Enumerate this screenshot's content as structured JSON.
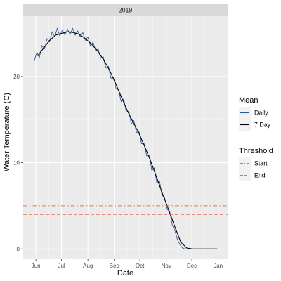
{
  "chart_data": {
    "type": "line",
    "facet": "2019",
    "xlabel": "Date",
    "ylabel": "Water Temperature (C)",
    "x_ticks": [
      "Jun",
      "Jul",
      "Aug",
      "Sep",
      "Oct",
      "Nov",
      "Dec",
      "Jan"
    ],
    "x_tick_dates": [
      "2019-06-01",
      "2019-07-01",
      "2019-08-01",
      "2019-09-01",
      "2019-10-01",
      "2019-11-01",
      "2019-12-01",
      "2020-01-01"
    ],
    "xlim": [
      "2019-05-17",
      "2020-01-12"
    ],
    "y_ticks": [
      0,
      10,
      20
    ],
    "ylim": [
      -1.2,
      27
    ],
    "grid": true,
    "legend_position": "right",
    "series": [
      {
        "name": "Daily",
        "color": "#2e5a9c",
        "points": [
          [
            "2019-05-30",
            21.8
          ],
          [
            "2019-06-02",
            22.8
          ],
          [
            "2019-06-05",
            22.2
          ],
          [
            "2019-06-08",
            23.6
          ],
          [
            "2019-06-11",
            23.2
          ],
          [
            "2019-06-14",
            24.4
          ],
          [
            "2019-06-17",
            24.0
          ],
          [
            "2019-06-20",
            25.2
          ],
          [
            "2019-06-23",
            24.6
          ],
          [
            "2019-06-26",
            25.6
          ],
          [
            "2019-06-29",
            24.7
          ],
          [
            "2019-07-02",
            25.4
          ],
          [
            "2019-07-05",
            24.8
          ],
          [
            "2019-07-08",
            25.5
          ],
          [
            "2019-07-11",
            24.9
          ],
          [
            "2019-07-14",
            25.6
          ],
          [
            "2019-07-17",
            24.8
          ],
          [
            "2019-07-20",
            25.3
          ],
          [
            "2019-07-23",
            24.6
          ],
          [
            "2019-07-26",
            25.1
          ],
          [
            "2019-07-29",
            24.2
          ],
          [
            "2019-08-01",
            24.6
          ],
          [
            "2019-08-04",
            23.5
          ],
          [
            "2019-08-07",
            24.0
          ],
          [
            "2019-08-10",
            23.0
          ],
          [
            "2019-08-13",
            23.2
          ],
          [
            "2019-08-16",
            22.1
          ],
          [
            "2019-08-19",
            22.3
          ],
          [
            "2019-08-22",
            21.0
          ],
          [
            "2019-08-25",
            21.2
          ],
          [
            "2019-08-28",
            19.8
          ],
          [
            "2019-08-31",
            19.9
          ],
          [
            "2019-09-03",
            18.6
          ],
          [
            "2019-09-06",
            18.5
          ],
          [
            "2019-09-09",
            17.1
          ],
          [
            "2019-09-12",
            17.4
          ],
          [
            "2019-09-15",
            15.9
          ],
          [
            "2019-09-18",
            16.0
          ],
          [
            "2019-09-21",
            14.5
          ],
          [
            "2019-09-24",
            14.9
          ],
          [
            "2019-09-27",
            13.5
          ],
          [
            "2019-09-30",
            13.6
          ],
          [
            "2019-10-03",
            12.2
          ],
          [
            "2019-10-06",
            12.2
          ],
          [
            "2019-10-09",
            10.8
          ],
          [
            "2019-10-12",
            10.9
          ],
          [
            "2019-10-15",
            9.1
          ],
          [
            "2019-10-18",
            9.4
          ],
          [
            "2019-10-21",
            7.6
          ],
          [
            "2019-10-24",
            7.9
          ],
          [
            "2019-10-27",
            6.2
          ],
          [
            "2019-10-30",
            6.0
          ],
          [
            "2019-11-02",
            4.6
          ],
          [
            "2019-11-05",
            4.3
          ],
          [
            "2019-11-08",
            2.8
          ],
          [
            "2019-11-11",
            2.2
          ],
          [
            "2019-11-14",
            1.1
          ],
          [
            "2019-11-17",
            0.5
          ],
          [
            "2019-11-20",
            0.1
          ],
          [
            "2019-11-23",
            0.0
          ],
          [
            "2019-11-26",
            0.0
          ],
          [
            "2019-12-05",
            0.0
          ],
          [
            "2019-12-15",
            0.0
          ],
          [
            "2019-12-25",
            0.0
          ],
          [
            "2019-12-31",
            0.0
          ]
        ]
      },
      {
        "name": "7 Day",
        "color": "#000000",
        "points": [
          [
            "2019-06-03",
            22.4
          ],
          [
            "2019-06-10",
            23.3
          ],
          [
            "2019-06-17",
            24.2
          ],
          [
            "2019-06-24",
            24.8
          ],
          [
            "2019-07-01",
            25.0
          ],
          [
            "2019-07-08",
            25.2
          ],
          [
            "2019-07-15",
            25.1
          ],
          [
            "2019-07-22",
            24.9
          ],
          [
            "2019-07-29",
            24.4
          ],
          [
            "2019-08-05",
            23.8
          ],
          [
            "2019-08-12",
            23.0
          ],
          [
            "2019-08-19",
            22.0
          ],
          [
            "2019-08-26",
            20.8
          ],
          [
            "2019-09-02",
            19.3
          ],
          [
            "2019-09-09",
            17.7
          ],
          [
            "2019-09-16",
            16.1
          ],
          [
            "2019-09-23",
            14.7
          ],
          [
            "2019-09-30",
            13.4
          ],
          [
            "2019-10-07",
            11.8
          ],
          [
            "2019-10-14",
            10.1
          ],
          [
            "2019-10-21",
            8.2
          ],
          [
            "2019-10-28",
            6.3
          ],
          [
            "2019-11-04",
            4.5
          ],
          [
            "2019-11-11",
            2.6
          ],
          [
            "2019-11-18",
            0.8
          ],
          [
            "2019-11-25",
            0.1
          ],
          [
            "2019-12-02",
            0.0
          ],
          [
            "2019-12-15",
            0.0
          ],
          [
            "2019-12-31",
            0.0
          ]
        ]
      }
    ],
    "thresholds": [
      {
        "name": "Start",
        "value": 5,
        "color": "#e8704e",
        "linetype": "dotdash"
      },
      {
        "name": "End",
        "value": 4,
        "color": "#e8704e",
        "linetype": "dashed"
      }
    ],
    "legends": [
      {
        "title": "Mean",
        "entries": [
          "Daily",
          "7 Day"
        ]
      },
      {
        "title": "Threshold",
        "entries": [
          "Start",
          "End"
        ]
      }
    ]
  }
}
